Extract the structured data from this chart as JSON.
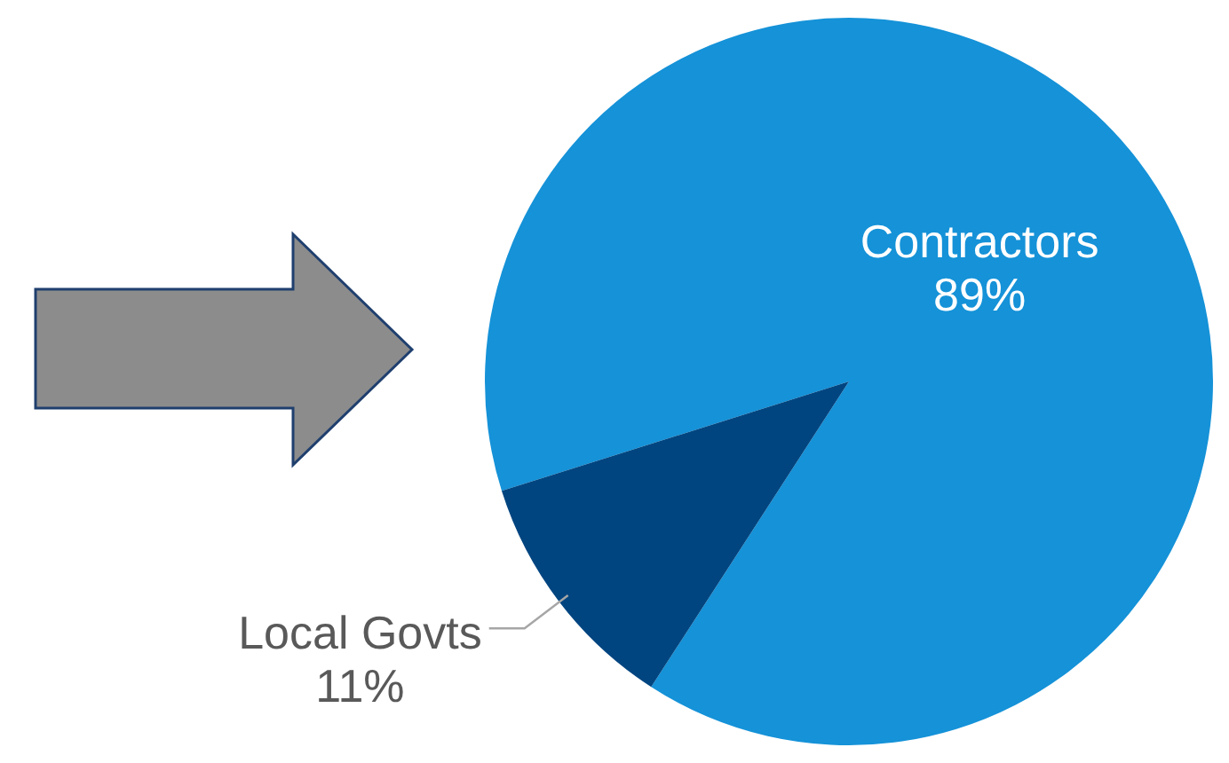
{
  "chart_data": {
    "type": "pie",
    "categories": [
      "Contractors",
      "Local Govts"
    ],
    "values": [
      89,
      11
    ],
    "colors": [
      "#1592d8",
      "#004580"
    ],
    "value_labels": [
      "89%",
      "11%"
    ],
    "legend": false
  }
}
